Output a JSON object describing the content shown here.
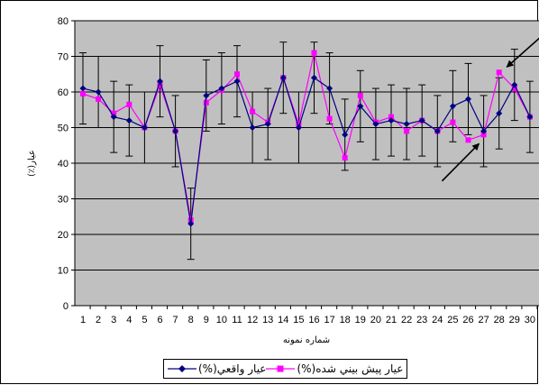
{
  "chart_data": {
    "type": "line",
    "title": "",
    "xlabel": "شماره نمونه",
    "ylabel": "عيار(٪)",
    "ylim": [
      0,
      80
    ],
    "y_ticks": [
      0,
      10,
      20,
      30,
      40,
      50,
      60,
      70,
      80
    ],
    "grid": true,
    "legend_position": "bottom",
    "categories": [
      "1",
      "2",
      "3",
      "4",
      "5",
      "6",
      "7",
      "8",
      "9",
      "10",
      "11",
      "12",
      "13",
      "14",
      "15",
      "16",
      "17",
      "18",
      "19",
      "20",
      "21",
      "22",
      "23",
      "24",
      "25",
      "26",
      "27",
      "28",
      "29",
      "30"
    ],
    "series": [
      {
        "name": "عيار واقعي(%)",
        "color": "#000080",
        "marker": "diamond",
        "values": [
          61,
          60,
          53,
          52,
          50,
          63,
          49,
          23,
          59,
          61,
          63,
          50,
          51,
          64,
          50,
          64,
          61,
          48,
          56,
          51,
          52,
          51,
          52,
          49,
          56,
          58,
          49,
          54,
          62,
          53
        ],
        "error_bars": [
          10,
          10,
          10,
          10,
          10,
          10,
          10,
          10,
          10,
          10,
          10,
          10,
          10,
          10,
          10,
          10,
          10,
          10,
          10,
          10,
          10,
          10,
          10,
          10,
          10,
          10,
          10,
          10,
          10,
          10
        ]
      },
      {
        "name": "عيار پيش بيني شده(%)",
        "color": "#ff00ff",
        "marker": "square",
        "values": [
          59.5,
          58,
          54,
          56.5,
          50,
          62,
          49,
          24,
          57,
          60.5,
          65,
          54.5,
          51.5,
          64,
          51,
          71,
          52.5,
          41.5,
          59,
          51.5,
          53,
          49,
          52,
          49,
          51.5,
          46.5,
          48,
          65.5,
          61,
          53
        ]
      }
    ],
    "annotations": [
      {
        "type": "arrow",
        "from": {
          "x": 24.3,
          "y": 35
        },
        "to": {
          "x": 26.7,
          "y": 45.5
        }
      },
      {
        "type": "arrow",
        "from": {
          "x": 31.5,
          "y": 78.5
        },
        "to": {
          "x": 28.5,
          "y": 67
        }
      }
    ]
  }
}
